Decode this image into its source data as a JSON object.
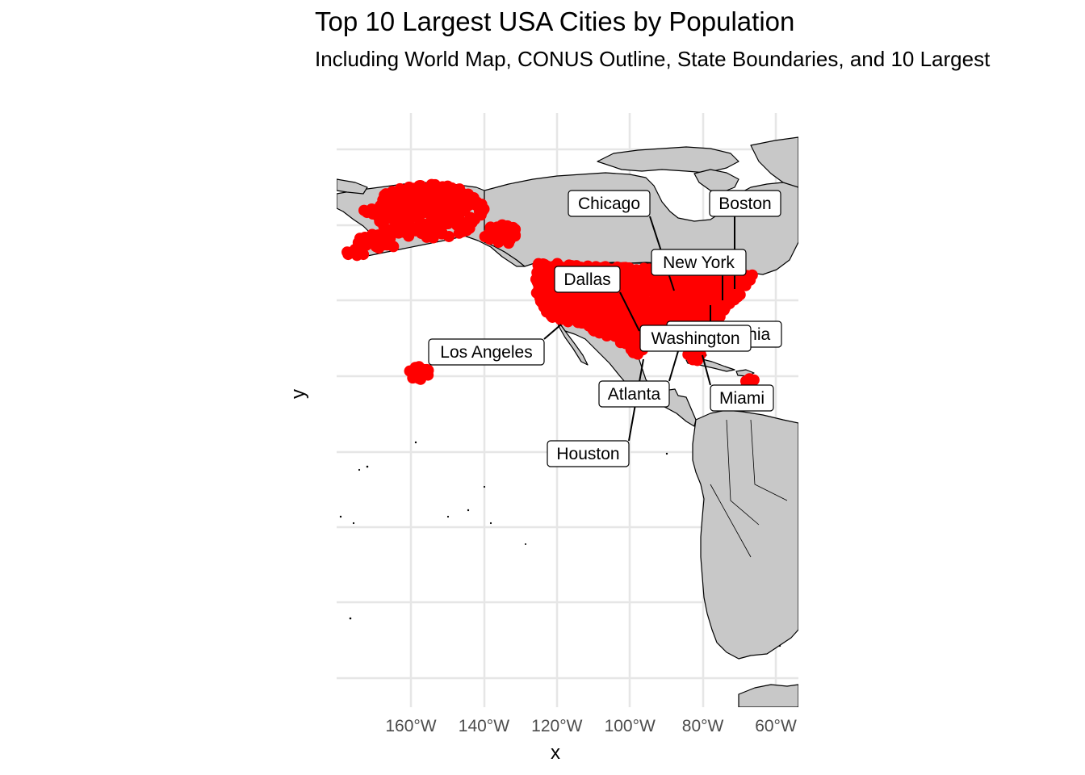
{
  "title": "Top 10 Largest USA Cities by Population",
  "subtitle": "Including World Map, CONUS Outline, State Boundaries, and 10 Largest",
  "axes": {
    "x_title": "x",
    "y_title": "y",
    "x_ticks": [
      "160°W",
      "140°W",
      "120°W",
      "100°W",
      "80°W",
      "60°W"
    ],
    "x_tick_values": [
      -160,
      -140,
      -120,
      -100,
      -80,
      -60
    ],
    "y_gridlines": [
      70,
      60,
      50,
      40,
      30,
      20,
      10,
      0,
      -10,
      -20
    ],
    "xlim": [
      -180,
      -54
    ],
    "ylim": [
      -23,
      74
    ]
  },
  "colors": {
    "land": "#c8c8c8",
    "grid": "#e6e6e6",
    "points": "#ff0000",
    "outline": "#000000"
  },
  "cities": [
    {
      "name": "Chicago",
      "lon": -87.6,
      "lat": 41.9
    },
    {
      "name": "Boston",
      "lon": -71.1,
      "lat": 42.4
    },
    {
      "name": "New York",
      "lon": -74.0,
      "lat": 40.7
    },
    {
      "name": "Dallas",
      "lon": -96.8,
      "lat": 32.8
    },
    {
      "name": "Philadelphia",
      "lon": -75.2,
      "lat": 40.0
    },
    {
      "name": "Washington",
      "lon": -77.0,
      "lat": 38.9
    },
    {
      "name": "Los Angeles",
      "lon": -118.2,
      "lat": 34.1
    },
    {
      "name": "Atlanta",
      "lon": -84.4,
      "lat": 33.7
    },
    {
      "name": "Miami",
      "lon": -80.2,
      "lat": 25.8
    },
    {
      "name": "Houston",
      "lon": -95.4,
      "lat": 29.8
    }
  ],
  "map_type": "world basemap with US city points and repelled labels"
}
